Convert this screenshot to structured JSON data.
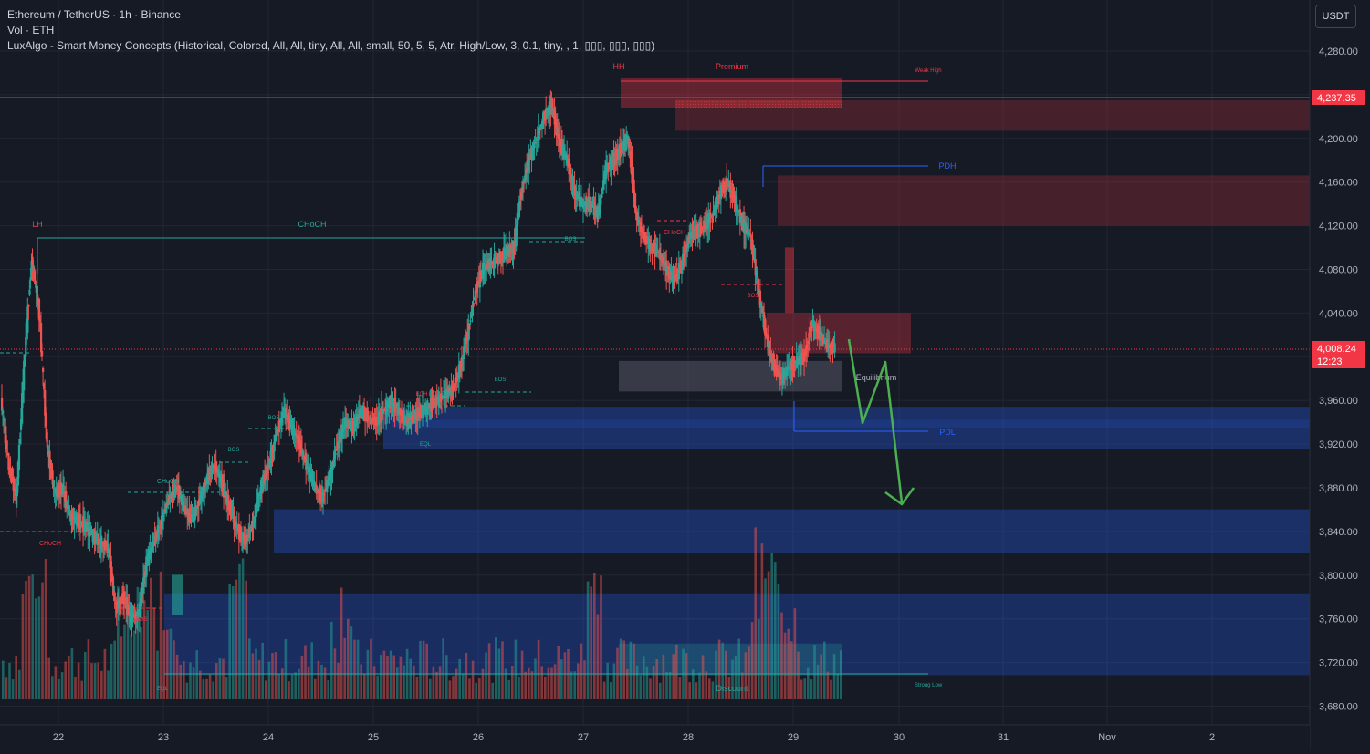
{
  "legend": {
    "symbol": "Ethereum / TetherUS · 1h · Binance",
    "volume": "Vol · ETH",
    "indicator": "LuxAlgo - Smart Money Concepts (Historical, Colored, All, All, tiny, All, All, small, 50, 5, 5, Atr, High/Low, 3, 0.1, tiny, , 1, ▯▯▯, ▯▯▯, ▯▯▯)"
  },
  "currency_label": "USDT",
  "price_ticks": [
    "4,280.00",
    "4,240.00",
    "4,200.00",
    "4,160.00",
    "4,120.00",
    "4,080.00",
    "4,040.00",
    "4,000.00",
    "3,960.00",
    "3,920.00",
    "3,880.00",
    "3,840.00",
    "3,800.00",
    "3,760.00",
    "3,720.00",
    "3,680.00"
  ],
  "last_price": {
    "value": "4,008.24",
    "countdown": "12:23",
    "color": "#f23645"
  },
  "high_marker": {
    "value": "4,237.35",
    "color": "#f23645"
  },
  "time_ticks": [
    "22",
    "23",
    "24",
    "25",
    "26",
    "27",
    "28",
    "29",
    "30",
    "31",
    "Nov",
    "2"
  ],
  "annotations": {
    "lh": "LH",
    "hh": "HH",
    "premium": "Premium",
    "weak_high": "Weak High",
    "choch_main": "CHoCH",
    "pdh": "PDH",
    "pdl": "PDL",
    "equilibrium": "Equilibrium",
    "discount": "Discount",
    "strong_low": "Strong Low",
    "choch_left": "CHoCH",
    "choch_small": "CHoCH",
    "choch_28": "CHoCH",
    "bos_a": "BOS",
    "bos_b": "BOS",
    "bos_c": "BOS",
    "bos_d": "BOS",
    "bos_e": "BOS",
    "bos_f": "BOS",
    "bos_28": "BOS",
    "bos_low": "BOS",
    "eqh": "EQH",
    "eqh2": "EQH",
    "eql": "EQL",
    "eql2": "EQL"
  },
  "chart_data": {
    "type": "candlestick",
    "symbol": "ETHUSDT",
    "interval": "1h",
    "exchange": "Binance",
    "ylim": [
      3665,
      4305
    ],
    "x_ticks": [
      "22",
      "23",
      "24",
      "25",
      "26",
      "27",
      "28",
      "29",
      "30",
      "31",
      "Nov",
      "2"
    ],
    "last_price": 4008.24,
    "colors": {
      "up": "#26a69a",
      "down": "#ef5350",
      "zone_bear": "#f23645",
      "zone_bull": "#2962ff",
      "projection": "#4caf50"
    },
    "price_path": [
      3960,
      3900,
      3870,
      3990,
      4090,
      4040,
      3920,
      3875,
      3880,
      3855,
      3850,
      3845,
      3835,
      3830,
      3825,
      3770,
      3780,
      3760,
      3765,
      3810,
      3830,
      3850,
      3870,
      3880,
      3860,
      3850,
      3870,
      3890,
      3900,
      3880,
      3860,
      3840,
      3830,
      3850,
      3880,
      3900,
      3930,
      3950,
      3935,
      3920,
      3900,
      3880,
      3870,
      3890,
      3920,
      3940,
      3935,
      3950,
      3945,
      3940,
      3950,
      3960,
      3950,
      3940,
      3945,
      3950,
      3955,
      3960,
      3965,
      3970,
      3990,
      4020,
      4060,
      4080,
      4085,
      4090,
      4095,
      4100,
      4150,
      4180,
      4200,
      4220,
      4230,
      4195,
      4180,
      4150,
      4140,
      4140,
      4130,
      4170,
      4180,
      4190,
      4200,
      4130,
      4110,
      4100,
      4095,
      4080,
      4070,
      4085,
      4110,
      4115,
      4120,
      4130,
      4150,
      4160,
      4140,
      4120,
      4110,
      4060,
      4020,
      3990,
      3980,
      3990,
      3995,
      4000,
      4030,
      4020,
      4010,
      4008
    ]
  }
}
